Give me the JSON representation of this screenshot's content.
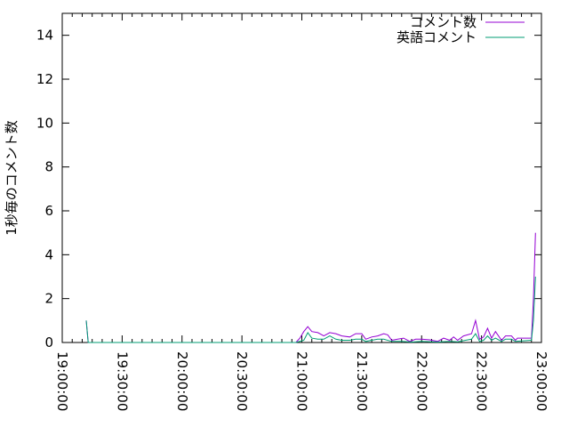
{
  "chart_data": {
    "type": "line",
    "title": "",
    "xlabel": "",
    "ylabel": "1秒毎のコメント数",
    "xlim": [
      "19:00:00",
      "23:00:00"
    ],
    "ylim": [
      0,
      15
    ],
    "xticks": [
      "19:00:00",
      "19:30:00",
      "20:00:00",
      "20:30:00",
      "21:00:00",
      "21:30:00",
      "22:00:00",
      "22:30:00",
      "23:00:00"
    ],
    "yticks": [
      0,
      2,
      4,
      6,
      8,
      10,
      12,
      14
    ],
    "legend_position": "top-right",
    "grid": false,
    "series": [
      {
        "name": "コメント数",
        "color": "#9400d3",
        "points": [
          [
            "19:12",
            1
          ],
          [
            "19:13",
            0
          ],
          [
            "20:57",
            0
          ],
          [
            "20:59",
            0.2
          ],
          [
            "21:01",
            0.5
          ],
          [
            "21:03",
            0.72
          ],
          [
            "21:05",
            0.5
          ],
          [
            "21:08",
            0.45
          ],
          [
            "21:11",
            0.3
          ],
          [
            "21:14",
            0.45
          ],
          [
            "21:17",
            0.4
          ],
          [
            "21:20",
            0.3
          ],
          [
            "21:24",
            0.25
          ],
          [
            "21:27",
            0.4
          ],
          [
            "21:30",
            0.4
          ],
          [
            "21:32",
            0.15
          ],
          [
            "21:35",
            0.25
          ],
          [
            "21:38",
            0.3
          ],
          [
            "21:41",
            0.4
          ],
          [
            "21:43",
            0.35
          ],
          [
            "21:45",
            0.1
          ],
          [
            "21:48",
            0.15
          ],
          [
            "21:51",
            0.2
          ],
          [
            "21:54",
            0.05
          ],
          [
            "21:57",
            0.15
          ],
          [
            "22:00",
            0.15
          ],
          [
            "22:04",
            0.12
          ],
          [
            "22:08",
            0.05
          ],
          [
            "22:11",
            0.2
          ],
          [
            "22:14",
            0.1
          ],
          [
            "22:16",
            0.25
          ],
          [
            "22:18",
            0.1
          ],
          [
            "22:21",
            0.3
          ],
          [
            "22:25",
            0.4
          ],
          [
            "22:27",
            1.0
          ],
          [
            "22:29",
            0.15
          ],
          [
            "22:31",
            0.25
          ],
          [
            "22:33",
            0.65
          ],
          [
            "22:35",
            0.2
          ],
          [
            "22:37",
            0.5
          ],
          [
            "22:40",
            0.1
          ],
          [
            "22:42",
            0.3
          ],
          [
            "22:45",
            0.3
          ],
          [
            "22:47",
            0.1
          ],
          [
            "22:48",
            0.2
          ],
          [
            "22:55",
            0.2
          ],
          [
            "22:56",
            2.0
          ],
          [
            "22:57",
            5.0
          ]
        ]
      },
      {
        "name": "英語コメント",
        "color": "#009e73",
        "points": [
          [
            "19:12",
            1
          ],
          [
            "19:13",
            0
          ],
          [
            "20:57",
            0
          ],
          [
            "21:01",
            0.1
          ],
          [
            "21:03",
            0.45
          ],
          [
            "21:05",
            0.2
          ],
          [
            "21:08",
            0.15
          ],
          [
            "21:11",
            0.15
          ],
          [
            "21:14",
            0.3
          ],
          [
            "21:17",
            0.15
          ],
          [
            "21:20",
            0.1
          ],
          [
            "21:24",
            0.1
          ],
          [
            "21:27",
            0.15
          ],
          [
            "21:30",
            0.15
          ],
          [
            "21:32",
            0.05
          ],
          [
            "21:35",
            0.1
          ],
          [
            "21:38",
            0.15
          ],
          [
            "21:41",
            0.15
          ],
          [
            "21:45",
            0.05
          ],
          [
            "21:50",
            0.05
          ],
          [
            "21:55",
            0.02
          ],
          [
            "22:00",
            0.05
          ],
          [
            "22:08",
            0.02
          ],
          [
            "22:14",
            0.05
          ],
          [
            "22:18",
            0.03
          ],
          [
            "22:22",
            0.1
          ],
          [
            "22:25",
            0.15
          ],
          [
            "22:27",
            0.4
          ],
          [
            "22:29",
            0.05
          ],
          [
            "22:31",
            0.1
          ],
          [
            "22:33",
            0.3
          ],
          [
            "22:35",
            0.1
          ],
          [
            "22:37",
            0.2
          ],
          [
            "22:40",
            0.05
          ],
          [
            "22:42",
            0.15
          ],
          [
            "22:45",
            0.15
          ],
          [
            "22:47",
            0.05
          ],
          [
            "22:55",
            0.1
          ],
          [
            "22:56",
            1.0
          ],
          [
            "22:57",
            3.0
          ]
        ]
      }
    ]
  }
}
